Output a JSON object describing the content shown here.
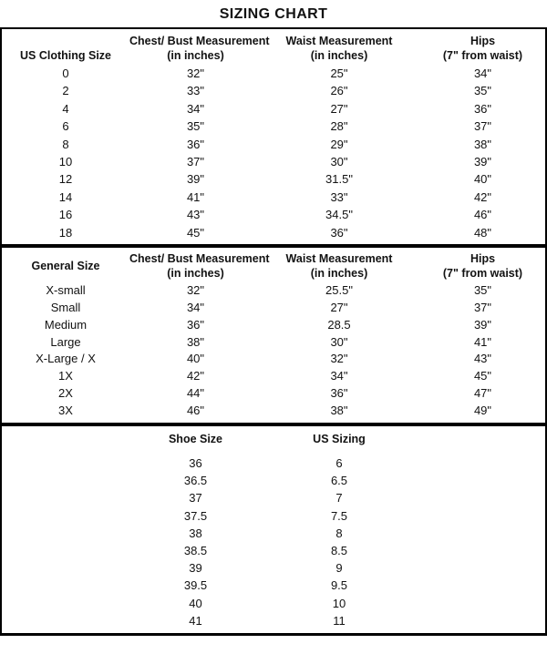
{
  "title": "SIZING CHART",
  "colors": {
    "background": "#ffffff",
    "border": "#000000",
    "text": "#121212"
  },
  "chart_data": [
    {
      "type": "table",
      "name": "us-clothing-sizes",
      "columns": [
        {
          "title": "US Clothing Size",
          "sub": ""
        },
        {
          "title": "Chest/ Bust Measurement",
          "sub": "(in inches)"
        },
        {
          "title": "Waist Measurement",
          "sub": "(in inches)"
        },
        {
          "title": "Hips",
          "sub": "(7\" from waist)"
        }
      ],
      "rows": [
        [
          "0",
          "32\"",
          "25\"",
          "34\""
        ],
        [
          "2",
          "33\"",
          "26\"",
          "35\""
        ],
        [
          "4",
          "34\"",
          "27\"",
          "36\""
        ],
        [
          "6",
          "35\"",
          "28\"",
          "37\""
        ],
        [
          "8",
          "36\"",
          "29\"",
          "38\""
        ],
        [
          "10",
          "37\"",
          "30\"",
          "39\""
        ],
        [
          "12",
          "39\"",
          "31.5\"",
          "40\""
        ],
        [
          "14",
          "41\"",
          "33\"",
          "42\""
        ],
        [
          "16",
          "43\"",
          "34.5\"",
          "46\""
        ],
        [
          "18",
          "45\"",
          "36\"",
          "48\""
        ]
      ]
    },
    {
      "type": "table",
      "name": "general-sizes",
      "columns": [
        {
          "title": "General Size",
          "sub": ""
        },
        {
          "title": "Chest/ Bust Measurement",
          "sub": "(in inches)"
        },
        {
          "title": "Waist Measurement",
          "sub": "(in inches)"
        },
        {
          "title": "Hips",
          "sub": "(7\" from waist)"
        }
      ],
      "rows": [
        [
          "X-small",
          "32\"",
          "25.5\"",
          "35\""
        ],
        [
          "Small",
          "34\"",
          "27\"",
          "37\""
        ],
        [
          "Medium",
          "36\"",
          "28.5",
          "39\""
        ],
        [
          "Large",
          "38\"",
          "30\"",
          "41\""
        ],
        [
          "X-Large / X",
          "40\"",
          "32\"",
          "43\""
        ],
        [
          "1X",
          "42\"",
          "34\"",
          "45\""
        ],
        [
          "2X",
          "44\"",
          "36\"",
          "47\""
        ],
        [
          "3X",
          "46\"",
          "38\"",
          "49\""
        ]
      ]
    },
    {
      "type": "table",
      "name": "shoe-sizes",
      "columns": [
        {
          "title": "Shoe Size",
          "sub": ""
        },
        {
          "title": "US Sizing",
          "sub": ""
        }
      ],
      "rows": [
        [
          "36",
          "6"
        ],
        [
          "36.5",
          "6.5"
        ],
        [
          "37",
          "7"
        ],
        [
          "37.5",
          "7.5"
        ],
        [
          "38",
          "8"
        ],
        [
          "38.5",
          "8.5"
        ],
        [
          "39",
          "9"
        ],
        [
          "39.5",
          "9.5"
        ],
        [
          "40",
          "10"
        ],
        [
          "41",
          "11"
        ]
      ]
    }
  ]
}
